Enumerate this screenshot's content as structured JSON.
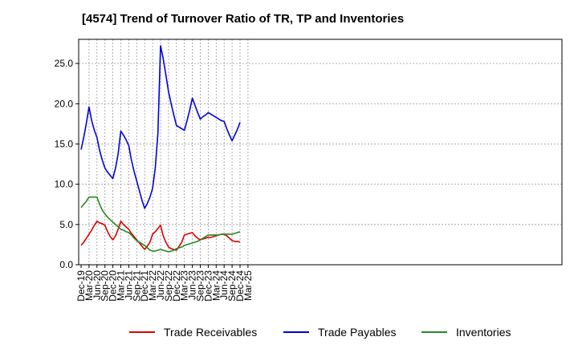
{
  "chart_data": {
    "type": "line",
    "title": "[4574]  Trend of Turnover Ratio of TR, TP and Inventories",
    "x": [
      "Dec-19",
      "Jan-20",
      "Feb-20",
      "Mar-20",
      "Apr-20",
      "May-20",
      "Jun-20",
      "Jul-20",
      "Aug-20",
      "Sep-20",
      "Oct-20",
      "Nov-20",
      "Dec-20",
      "Jan-21",
      "Feb-21",
      "Mar-21",
      "Apr-21",
      "May-21",
      "Jun-21",
      "Jul-21",
      "Aug-21",
      "Sep-21",
      "Oct-21",
      "Nov-21",
      "Dec-21",
      "Jan-22",
      "Feb-22",
      "Mar-22",
      "Apr-22",
      "May-22",
      "Jun-22",
      "Jul-22",
      "Aug-22",
      "Sep-22",
      "Oct-22",
      "Nov-22",
      "Dec-22",
      "Jan-23",
      "Feb-23",
      "Mar-23",
      "Apr-23",
      "May-23",
      "Jun-23",
      "Jul-23",
      "Aug-23",
      "Sep-23",
      "Oct-23",
      "Nov-23",
      "Dec-23",
      "Jan-24",
      "Feb-24",
      "Mar-24",
      "Apr-24",
      "May-24",
      "Jun-24",
      "Jul-24",
      "Aug-24",
      "Sep-24",
      "Oct-24",
      "Nov-24",
      "Dec-24"
    ],
    "x_ticks": [
      "Dec-19",
      "Mar-20",
      "Jun-20",
      "Sep-20",
      "Dec-20",
      "Mar-21",
      "Jun-21",
      "Sep-21",
      "Dec-21",
      "Mar-22",
      "Jun-22",
      "Sep-22",
      "Dec-22",
      "Mar-23",
      "Jun-23",
      "Sep-23",
      "Dec-23",
      "Mar-24",
      "Jun-24",
      "Sep-24",
      "Dec-24",
      "Mar-25"
    ],
    "y_ticks": [
      "0.0",
      "5.0",
      "10.0",
      "15.0",
      "20.0",
      "25.0"
    ],
    "ylim": [
      0,
      28
    ],
    "grid": true,
    "legend_position": "bottom",
    "series": [
      {
        "name": "Trade Receivables",
        "color": "#dd0000",
        "values": [
          2.4,
          2.8,
          3.3,
          3.8,
          4.3,
          4.9,
          5.4,
          5.2,
          5.1,
          4.9,
          4.1,
          3.5,
          3.1,
          3.6,
          4.4,
          5.4,
          5.0,
          4.7,
          4.4,
          3.9,
          3.5,
          3.1,
          2.7,
          2.3,
          1.9,
          2.3,
          2.8,
          3.8,
          4.1,
          4.5,
          4.9,
          3.6,
          2.8,
          2.2,
          2.0,
          1.9,
          1.8,
          2.3,
          2.8,
          3.7,
          3.8,
          3.9,
          4.0,
          3.6,
          3.3,
          3.1,
          3.2,
          3.3,
          3.4,
          3.4,
          3.5,
          3.6,
          3.7,
          3.8,
          3.8,
          3.6,
          3.3,
          3.0,
          2.9,
          2.9,
          2.8
        ]
      },
      {
        "name": "Trade Payables",
        "color": "#0000dd",
        "values": [
          14.3,
          15.8,
          17.6,
          19.6,
          17.9,
          16.7,
          15.8,
          14.2,
          13.0,
          12.0,
          11.5,
          11.1,
          10.7,
          12.0,
          13.8,
          16.6,
          16.1,
          15.5,
          14.8,
          13.0,
          11.6,
          10.4,
          9.2,
          8.0,
          7.0,
          7.6,
          8.4,
          9.5,
          12.0,
          16.3,
          27.2,
          25.6,
          23.6,
          21.5,
          20.0,
          18.6,
          17.3,
          17.1,
          16.9,
          16.7,
          17.9,
          19.2,
          20.7,
          19.8,
          18.9,
          18.1,
          18.4,
          18.6,
          18.9,
          18.7,
          18.5,
          18.3,
          18.1,
          17.9,
          17.8,
          16.9,
          16.1,
          15.4,
          16.1,
          16.8,
          17.7
        ]
      },
      {
        "name": "Inventories",
        "color": "#228822",
        "values": [
          7.1,
          7.5,
          7.9,
          8.4,
          8.4,
          8.4,
          8.4,
          7.5,
          6.8,
          6.3,
          5.9,
          5.6,
          5.3,
          5.0,
          4.7,
          4.4,
          4.3,
          4.1,
          4.0,
          3.7,
          3.3,
          3.0,
          2.8,
          2.6,
          2.4,
          2.1,
          1.8,
          1.7,
          1.7,
          1.8,
          1.9,
          1.8,
          1.7,
          1.6,
          1.7,
          1.8,
          2.0,
          2.1,
          2.2,
          2.4,
          2.5,
          2.6,
          2.7,
          2.8,
          2.9,
          3.1,
          3.3,
          3.5,
          3.7,
          3.7,
          3.7,
          3.7,
          3.7,
          3.8,
          3.8,
          3.8,
          3.8,
          3.8,
          3.9,
          4.0,
          4.1
        ]
      }
    ]
  }
}
